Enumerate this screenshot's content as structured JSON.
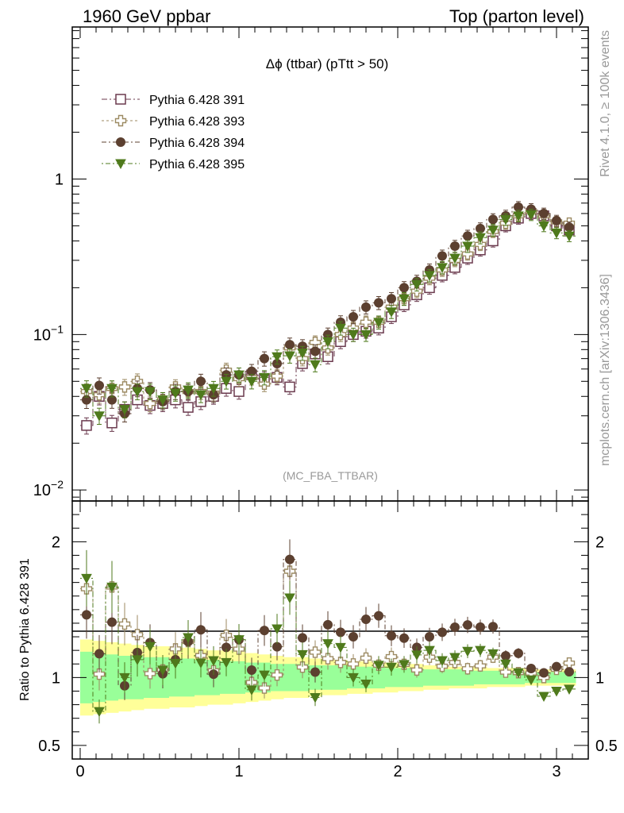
{
  "header": {
    "left": "1960 GeV ppbar",
    "right": "Top (parton level)",
    "side_top": "Rivet 4.1.0, ≥ 100k events",
    "side_bottom": "mcplots.cern.ch [arXiv:1306.3436]"
  },
  "chart_data": {
    "type": "scatter",
    "title": "Δϕ (ttbar) (pTtt > 50)",
    "watermark": "(MC_FBA_TTBAR)",
    "xlabel": "",
    "ylabel": "",
    "ratio_ylabel": "Ratio to Pythia 6.428 391",
    "xlim": [
      -0.05,
      3.2
    ],
    "ylim": [
      0.0085,
      9.5
    ],
    "yscale": "log",
    "ratio_ylim": [
      0.4,
      2.3
    ],
    "x_ticks": [
      "0",
      "1",
      "2",
      "3"
    ],
    "y_ticks": [
      "10^-2",
      "10^-1",
      "1"
    ],
    "ratio_ticks": [
      "0.5",
      "1",
      "2"
    ],
    "x": [
      0.04,
      0.12,
      0.2,
      0.28,
      0.36,
      0.44,
      0.52,
      0.6,
      0.68,
      0.76,
      0.84,
      0.92,
      1.0,
      1.08,
      1.16,
      1.24,
      1.32,
      1.4,
      1.48,
      1.56,
      1.64,
      1.72,
      1.8,
      1.88,
      1.96,
      2.04,
      2.12,
      2.2,
      2.28,
      2.36,
      2.44,
      2.52,
      2.6,
      2.68,
      2.76,
      2.84,
      2.92,
      3.0,
      3.08
    ],
    "series": [
      {
        "name": "Pythia 6.428 391",
        "color": "#6b3a4e",
        "marker": "open-square",
        "values": [
          0.026,
          0.04,
          0.027,
          0.033,
          0.038,
          0.035,
          0.036,
          0.038,
          0.034,
          0.037,
          0.04,
          0.045,
          0.043,
          0.055,
          0.052,
          0.053,
          0.046,
          0.065,
          0.075,
          0.072,
          0.09,
          0.1,
          0.105,
          0.11,
          0.13,
          0.155,
          0.18,
          0.2,
          0.24,
          0.27,
          0.31,
          0.35,
          0.4,
          0.5,
          0.56,
          0.6,
          0.58,
          0.5,
          0.47
        ]
      },
      {
        "name": "Pythia 6.428 393",
        "color": "#9c8a62",
        "marker": "open-cross",
        "values": [
          0.043,
          0.041,
          0.045,
          0.046,
          0.05,
          0.036,
          0.038,
          0.046,
          0.043,
          0.043,
          0.042,
          0.059,
          0.052,
          0.053,
          0.048,
          0.054,
          0.082,
          0.07,
          0.089,
          0.082,
          0.1,
          0.11,
          0.12,
          0.12,
          0.15,
          0.17,
          0.19,
          0.23,
          0.26,
          0.3,
          0.33,
          0.38,
          0.46,
          0.52,
          0.58,
          0.62,
          0.58,
          0.53,
          0.52
        ]
      },
      {
        "name": "Pythia 6.428 394",
        "color": "#5c4030",
        "marker": "filled-circle",
        "values": [
          0.038,
          0.047,
          0.038,
          0.031,
          0.045,
          0.044,
          0.037,
          0.043,
          0.043,
          0.05,
          0.041,
          0.055,
          0.055,
          0.058,
          0.07,
          0.065,
          0.086,
          0.084,
          0.078,
          0.1,
          0.12,
          0.13,
          0.15,
          0.16,
          0.17,
          0.2,
          0.22,
          0.26,
          0.32,
          0.37,
          0.43,
          0.48,
          0.55,
          0.58,
          0.66,
          0.64,
          0.6,
          0.54,
          0.49
        ]
      },
      {
        "name": "Pythia 6.428 395",
        "color": "#4f7a1c",
        "marker": "filled-triangle-down",
        "values": [
          0.045,
          0.03,
          0.045,
          0.033,
          0.043,
          0.043,
          0.038,
          0.042,
          0.044,
          0.041,
          0.045,
          0.05,
          0.055,
          0.05,
          0.053,
          0.072,
          0.073,
          0.076,
          0.064,
          0.09,
          0.11,
          0.1,
          0.1,
          0.12,
          0.14,
          0.17,
          0.21,
          0.24,
          0.27,
          0.31,
          0.37,
          0.42,
          0.47,
          0.55,
          0.58,
          0.59,
          0.5,
          0.45,
          0.43
        ]
      }
    ],
    "band_inner": [
      0.19,
      0.18,
      0.17,
      0.16,
      0.16,
      0.15,
      0.15,
      0.14,
      0.14,
      0.13,
      0.13,
      0.12,
      0.12,
      0.11,
      0.11,
      0.1,
      0.1,
      0.1,
      0.09,
      0.09,
      0.09,
      0.08,
      0.08,
      0.08,
      0.07,
      0.07,
      0.07,
      0.06,
      0.06,
      0.06,
      0.06,
      0.05,
      0.05,
      0.05,
      0.05,
      0.04,
      0.04,
      0.04,
      0.04
    ],
    "band_outer": [
      0.28,
      0.27,
      0.26,
      0.25,
      0.24,
      0.23,
      0.23,
      0.22,
      0.22,
      0.21,
      0.2,
      0.2,
      0.19,
      0.18,
      0.17,
      0.16,
      0.15,
      0.15,
      0.14,
      0.13,
      0.13,
      0.12,
      0.12,
      0.11,
      0.11,
      0.1,
      0.1,
      0.09,
      0.09,
      0.08,
      0.08,
      0.08,
      0.07,
      0.07,
      0.07,
      0.06,
      0.06,
      0.06,
      0.06
    ],
    "band_colors": {
      "inner": "#99ff99",
      "outer": "#ffff99"
    }
  }
}
